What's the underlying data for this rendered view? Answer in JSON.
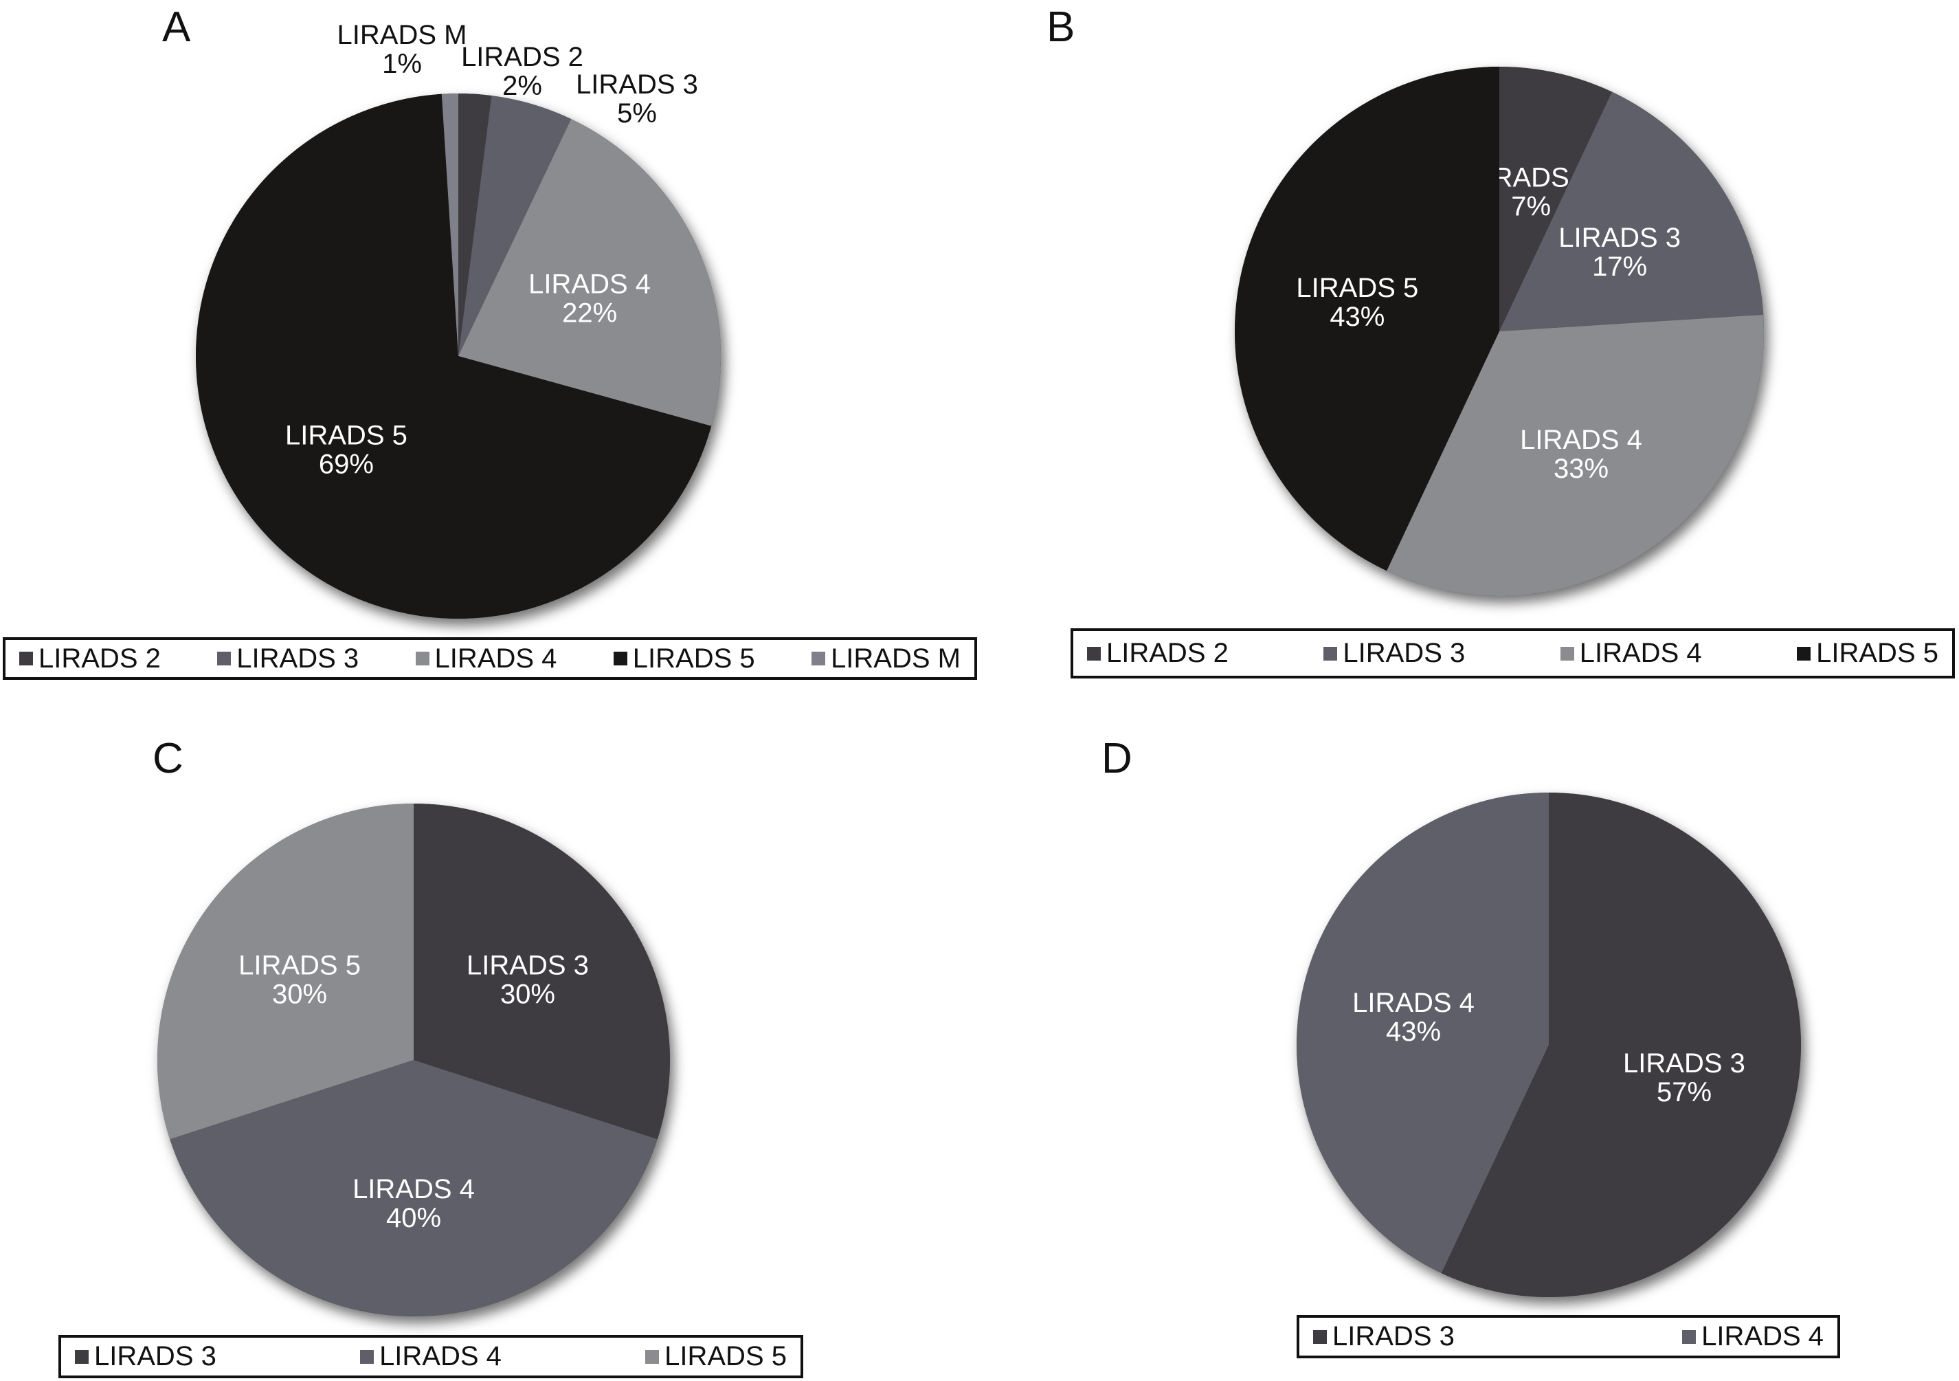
{
  "chart_data": [
    {
      "type": "pie",
      "panel": "A",
      "categories": [
        "LIRADS 2",
        "LIRADS 3",
        "LIRADS 4",
        "LIRADS 5",
        "LIRADS M"
      ],
      "values": [
        2,
        5,
        22,
        69,
        1
      ],
      "labels": [
        "2%",
        "5%",
        "22%",
        "69%",
        "1%"
      ],
      "colors": [
        "#3e3c41",
        "#5f5f69",
        "#8b8c90",
        "#181716",
        "#7f808a"
      ],
      "start": "top",
      "direction": "clockwise",
      "legend": "bottom"
    },
    {
      "type": "pie",
      "panel": "B",
      "categories": [
        "LIRADS 2",
        "LIRADS 3",
        "LIRADS 4",
        "LIRADS 5"
      ],
      "values": [
        7,
        17,
        33,
        43
      ],
      "labels": [
        "7%",
        "17%",
        "33%",
        "43%"
      ],
      "colors": [
        "#3e3c41",
        "#5f5f69",
        "#8b8c90",
        "#181716"
      ],
      "start": "top",
      "direction": "clockwise",
      "legend": "bottom"
    },
    {
      "type": "pie",
      "panel": "C",
      "categories": [
        "LIRADS 3",
        "LIRADS 4",
        "LIRADS 5"
      ],
      "values": [
        30,
        40,
        30
      ],
      "labels": [
        "30%",
        "40%",
        "30%"
      ],
      "colors": [
        "#3e3c41",
        "#5f5f69",
        "#8b8c90"
      ],
      "start": "top",
      "direction": "clockwise",
      "legend": "bottom"
    },
    {
      "type": "pie",
      "panel": "D",
      "categories": [
        "LIRADS 3",
        "LIRADS 4"
      ],
      "values": [
        57,
        43
      ],
      "labels": [
        "57%",
        "43%"
      ],
      "colors": [
        "#3e3c41",
        "#5f5f69"
      ],
      "start": "top",
      "direction": "clockwise",
      "legend": "bottom"
    }
  ]
}
